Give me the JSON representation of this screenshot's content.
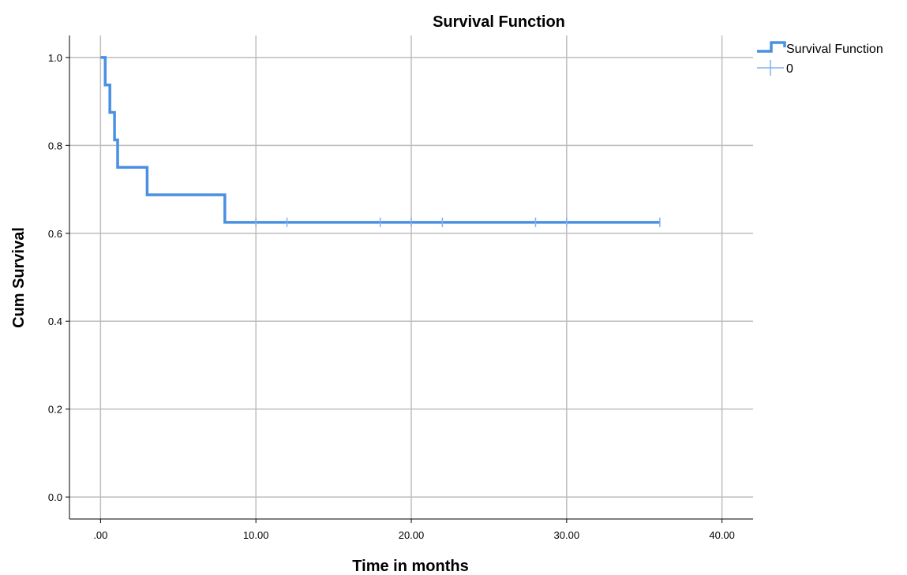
{
  "chart_data": {
    "type": "line",
    "title": "Survival Function",
    "xlabel": "Time in months",
    "ylabel": "Cum Survival",
    "xlim": [
      -2,
      42
    ],
    "ylim": [
      -0.05,
      1.05
    ],
    "x_ticks": [
      0,
      10,
      20,
      30,
      40
    ],
    "x_tick_labels": [
      ".00",
      "10.00",
      "20.00",
      "30.00",
      "40.00"
    ],
    "y_ticks": [
      0,
      0.2,
      0.4,
      0.6,
      0.8,
      1.0
    ],
    "y_tick_labels": [
      "0.0",
      "0.2",
      "0.4",
      "0.6",
      "0.8",
      "1.0"
    ],
    "grid": true,
    "legend_position": "top-right",
    "series": [
      {
        "name": "Survival Function",
        "color": "#4a90e2",
        "step": [
          [
            0,
            1.0
          ],
          [
            0.3,
            1.0
          ],
          [
            0.3,
            0.9375
          ],
          [
            0.6,
            0.9375
          ],
          [
            0.6,
            0.875
          ],
          [
            0.9,
            0.875
          ],
          [
            0.9,
            0.8125
          ],
          [
            1.1,
            0.8125
          ],
          [
            1.1,
            0.75
          ],
          [
            3.0,
            0.75
          ],
          [
            3.0,
            0.6875
          ],
          [
            8.0,
            0.6875
          ],
          [
            8.0,
            0.625
          ],
          [
            36.0,
            0.625
          ]
        ]
      },
      {
        "name": "0",
        "color": "#7fb2ef",
        "censored": [
          [
            10,
            0.625
          ],
          [
            12,
            0.625
          ],
          [
            18,
            0.625
          ],
          [
            20,
            0.625
          ],
          [
            22,
            0.625
          ],
          [
            28,
            0.625
          ],
          [
            30,
            0.625
          ],
          [
            36,
            0.625
          ]
        ]
      }
    ]
  }
}
